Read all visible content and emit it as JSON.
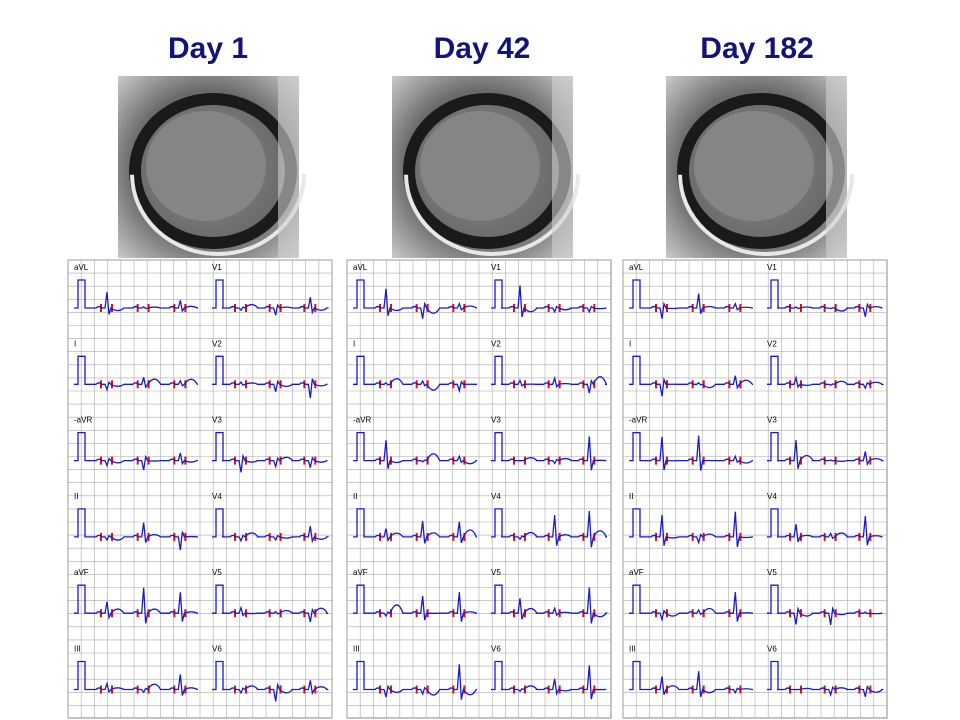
{
  "panels": [
    {
      "title": "Day 1"
    },
    {
      "title": "Day 42"
    },
    {
      "title": "Day 182"
    }
  ],
  "leads_left": [
    "aVL",
    "I",
    "-aVR",
    "II",
    "aVF",
    "III"
  ],
  "leads_right": [
    "V1",
    "V2",
    "V3",
    "V4",
    "V5",
    "V6"
  ]
}
